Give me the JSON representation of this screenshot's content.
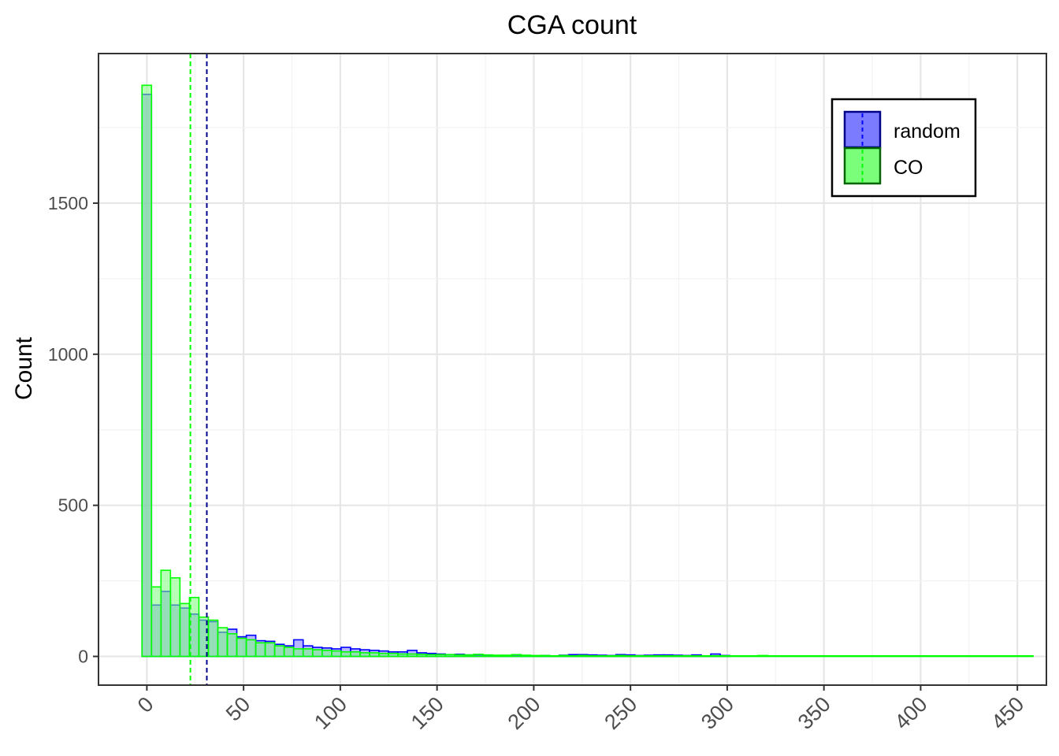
{
  "chart_data": {
    "type": "histogram",
    "title": "CGA count",
    "xlabel": "",
    "ylabel": "Count",
    "xlim": [
      -25,
      465
    ],
    "ylim": [
      -95,
      1995
    ],
    "x_ticks": [
      0,
      50,
      100,
      150,
      200,
      250,
      300,
      350,
      400,
      450
    ],
    "x_tick_labels": [
      "0",
      "50",
      "100",
      "150",
      "200",
      "250",
      "300",
      "350",
      "400",
      "450"
    ],
    "y_ticks": [
      0,
      500,
      1000,
      1500
    ],
    "y_tick_labels": [
      "0",
      "500",
      "1000",
      "1500"
    ],
    "bin_width": 4.9,
    "grid": true,
    "legend_position": "top-right",
    "series": [
      {
        "name": "random",
        "fill": "#7b7bff",
        "stroke": "#0000ff",
        "mean": 31,
        "bin_starts": [
          -2.5,
          2.4,
          7.3,
          12.2,
          17.1,
          22.0,
          26.9,
          31.8,
          36.7,
          41.6,
          46.5,
          51.4,
          56.3,
          61.2,
          66.1,
          71.0,
          75.9,
          80.8,
          85.7,
          90.6,
          95.5,
          100.4,
          105.3,
          110.2,
          115.1,
          120.0,
          124.9,
          129.8,
          134.7,
          139.6,
          144.5,
          149.4,
          154.3,
          159.2,
          164.1,
          169.0,
          173.9,
          178.8,
          183.7,
          188.6,
          193.5,
          198.4,
          203.3,
          208.2,
          213.1,
          218.0,
          222.9,
          227.8,
          232.7,
          237.6,
          242.5,
          247.4,
          252.3,
          257.2,
          262.1,
          267.0,
          271.9,
          276.8,
          281.7,
          286.6,
          291.5,
          296.4
        ],
        "counts": [
          1860,
          170,
          215,
          170,
          160,
          140,
          120,
          115,
          80,
          90,
          65,
          70,
          52,
          50,
          40,
          35,
          55,
          35,
          30,
          28,
          25,
          30,
          25,
          22,
          20,
          18,
          15,
          15,
          20,
          12,
          10,
          8,
          6,
          7,
          5,
          4,
          4,
          3,
          3,
          4,
          3,
          2,
          3,
          2,
          4,
          6,
          6,
          5,
          4,
          3,
          6,
          5,
          3,
          4,
          5,
          5,
          4,
          3,
          5,
          2,
          8,
          3
        ]
      },
      {
        "name": "CO",
        "fill": "#7bff7b",
        "stroke": "#00ff00",
        "mean": 22.5,
        "bin_starts": [
          -2.5,
          2.4,
          7.3,
          12.2,
          17.1,
          22.0,
          26.9,
          31.8,
          36.7,
          41.6,
          46.5,
          51.4,
          56.3,
          61.2,
          66.1,
          71.0,
          75.9,
          80.8,
          85.7,
          90.6,
          95.5,
          100.4,
          105.3,
          110.2,
          115.1,
          120.0,
          124.9,
          129.8,
          134.7,
          139.6,
          144.5,
          149.4,
          154.3,
          159.2,
          164.1,
          169.0,
          173.9,
          178.8,
          183.7,
          188.6,
          193.5,
          198.4,
          203.3,
          208.2,
          213.1,
          218.0,
          222.9,
          227.8,
          232.7,
          237.6,
          242.5,
          247.4,
          252.3,
          257.2,
          262.1,
          267.0,
          271.9,
          276.8,
          281.7,
          286.6,
          291.5,
          296.4,
          301.3,
          306.2,
          311.1,
          316.0,
          320.9,
          325.8,
          330.7,
          335.6,
          340.5,
          345.4,
          350.3,
          355.2,
          360.1,
          365.0,
          369.9,
          374.8,
          379.7,
          384.6,
          389.5,
          394.4,
          399.3,
          404.2,
          409.1,
          414.0,
          418.9,
          423.8,
          428.7,
          433.6,
          438.5,
          443.4,
          448.3,
          453.2
        ],
        "counts": [
          1890,
          230,
          285,
          260,
          175,
          195,
          130,
          120,
          95,
          75,
          60,
          55,
          45,
          45,
          35,
          30,
          25,
          25,
          22,
          20,
          18,
          15,
          15,
          12,
          12,
          10,
          10,
          8,
          8,
          7,
          6,
          6,
          6,
          5,
          5,
          7,
          5,
          4,
          4,
          6,
          4,
          3,
          3,
          2,
          3,
          2,
          3,
          2,
          2,
          2,
          3,
          2,
          2,
          2,
          2,
          2,
          2,
          2,
          2,
          2,
          2,
          2,
          2,
          2,
          2,
          3,
          2,
          2,
          2,
          2,
          2,
          2,
          2,
          2,
          2,
          2,
          2,
          2,
          2,
          2,
          2,
          2,
          2,
          2,
          2,
          2,
          2,
          2,
          2,
          2,
          2,
          2,
          2,
          2
        ]
      }
    ]
  }
}
